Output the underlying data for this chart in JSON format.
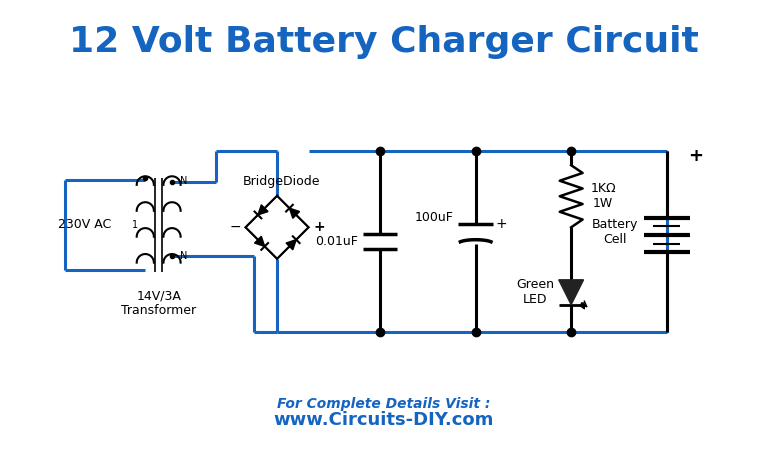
{
  "title": "12 Volt Battery Charger Circuit",
  "title_color": "#1565C0",
  "title_fontsize": 26,
  "background_color": "#FFFFFF",
  "line_color": "#1565C0",
  "component_color": "#000000",
  "website_text": "For Complete Details Visit :",
  "website_url": "www.Circuits-DIY.com",
  "website_color": "#1565C0",
  "labels": {
    "ac_input": "230V AC",
    "transformer": "14V/3A\nTransformer",
    "bridge": "BridgeDiode",
    "cap1": "0.01uF",
    "cap2": "100uF",
    "resistor": "1KΩ\n1W",
    "led": "Green\nLED",
    "battery": "Battery\nCell",
    "plus_battery": "+"
  }
}
